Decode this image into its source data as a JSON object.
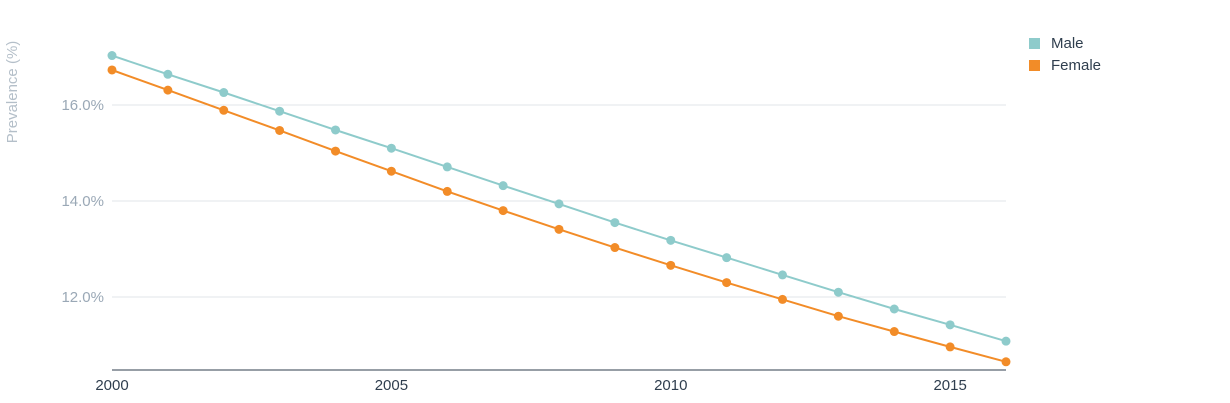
{
  "chart_data": {
    "type": "line",
    "ylabel": "Prevalence (%)",
    "x": [
      2000,
      2001,
      2002,
      2003,
      2004,
      2005,
      2006,
      2007,
      2008,
      2009,
      2010,
      2011,
      2012,
      2013,
      2014,
      2015,
      2016
    ],
    "xticks": [
      2000,
      2005,
      2010,
      2015
    ],
    "xlim": [
      2000,
      2016
    ],
    "yticks": [
      12,
      14,
      16
    ],
    "ytick_labels": [
      "12.0%",
      "14.0%",
      "16.0%"
    ],
    "ylim": [
      10.5,
      17.5
    ],
    "grid": true,
    "legend_position": "top-right",
    "series": [
      {
        "name": "Male",
        "color": "#8ecbcb",
        "values": [
          17.03,
          16.64,
          16.26,
          15.87,
          15.48,
          15.1,
          14.71,
          14.32,
          13.94,
          13.55,
          13.18,
          12.82,
          12.46,
          12.1,
          11.75,
          11.42,
          11.08
        ]
      },
      {
        "name": "Female",
        "color": "#f28c28",
        "values": [
          16.73,
          16.31,
          15.89,
          15.47,
          15.04,
          14.62,
          14.2,
          13.8,
          13.41,
          13.03,
          12.66,
          12.3,
          11.95,
          11.6,
          11.28,
          10.96,
          10.65
        ]
      }
    ]
  },
  "colors": {
    "grid": "#e2e5e8",
    "axis_line": "#2f3e4e",
    "tick_text": "#9aa8b6",
    "x_tick_text": "#2f3e4e",
    "axis_title": "#b4bfc9",
    "legend_text": "#2f3e4e"
  }
}
